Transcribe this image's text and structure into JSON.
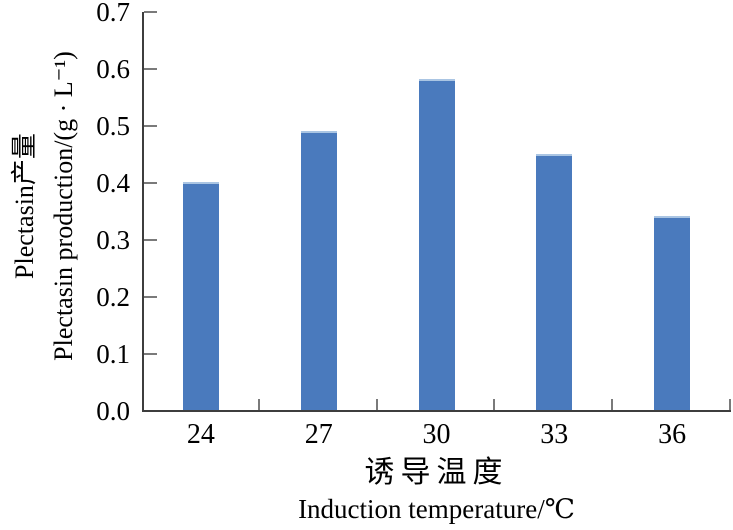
{
  "chart_data": {
    "type": "bar",
    "categories": [
      "24",
      "27",
      "30",
      "33",
      "36"
    ],
    "values": [
      0.4,
      0.49,
      0.58,
      0.45,
      0.34
    ],
    "xlabel_zh": "诱导温度",
    "xlabel_en": "Induction temperature/℃",
    "ylabel_zh": "Plectasin产量",
    "ylabel_en": "Plectasin production/(g · L⁻¹)",
    "ylim": [
      0.0,
      0.7
    ],
    "ytick_step": 0.1,
    "ytick_labels": [
      "0.0",
      "0.1",
      "0.2",
      "0.3",
      "0.4",
      "0.5",
      "0.6",
      "0.7"
    ],
    "grid": "off",
    "legend": "none",
    "bar_color": "#4a7abd",
    "bar_top_edge_color": "#aac5e3",
    "axis_line_color": "#3d3d3d",
    "tick_mark_color": "#7a7a7a",
    "text_color": "#000000",
    "background_color": "#ffffff"
  }
}
